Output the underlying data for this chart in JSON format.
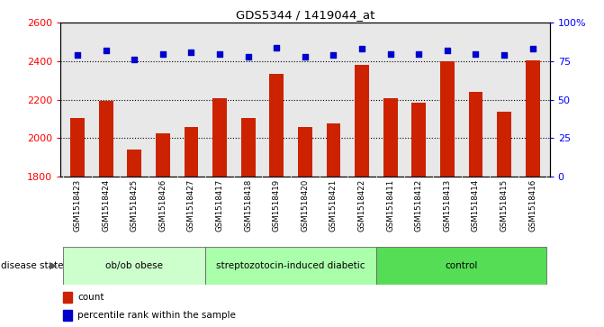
{
  "title": "GDS5344 / 1419044_at",
  "samples": [
    "GSM1518423",
    "GSM1518424",
    "GSM1518425",
    "GSM1518426",
    "GSM1518427",
    "GSM1518417",
    "GSM1518418",
    "GSM1518419",
    "GSM1518420",
    "GSM1518421",
    "GSM1518422",
    "GSM1518411",
    "GSM1518412",
    "GSM1518413",
    "GSM1518414",
    "GSM1518415",
    "GSM1518416"
  ],
  "counts": [
    2105,
    2195,
    1940,
    2025,
    2060,
    2210,
    2105,
    2335,
    2060,
    2075,
    2380,
    2210,
    2185,
    2400,
    2240,
    2140,
    2405
  ],
  "percentiles": [
    79,
    82,
    76,
    80,
    81,
    80,
    78,
    84,
    78,
    79,
    83,
    80,
    80,
    82,
    80,
    79,
    83
  ],
  "groups": [
    {
      "label": "ob/ob obese",
      "start": 0,
      "end": 5,
      "color": "#ccffcc"
    },
    {
      "label": "streptozotocin-induced diabetic",
      "start": 5,
      "end": 11,
      "color": "#aaffaa"
    },
    {
      "label": "control",
      "start": 11,
      "end": 17,
      "color": "#55dd55"
    }
  ],
  "ylim_left": [
    1800,
    2600
  ],
  "ylim_right": [
    0,
    100
  ],
  "yticks_left": [
    1800,
    2000,
    2200,
    2400,
    2600
  ],
  "yticks_right": [
    0,
    25,
    50,
    75,
    100
  ],
  "bar_color": "#cc2200",
  "dot_color": "#0000cc",
  "chart_bg": "#e8e8e8",
  "label_bg": "#cccccc",
  "fig_bg": "#ffffff"
}
